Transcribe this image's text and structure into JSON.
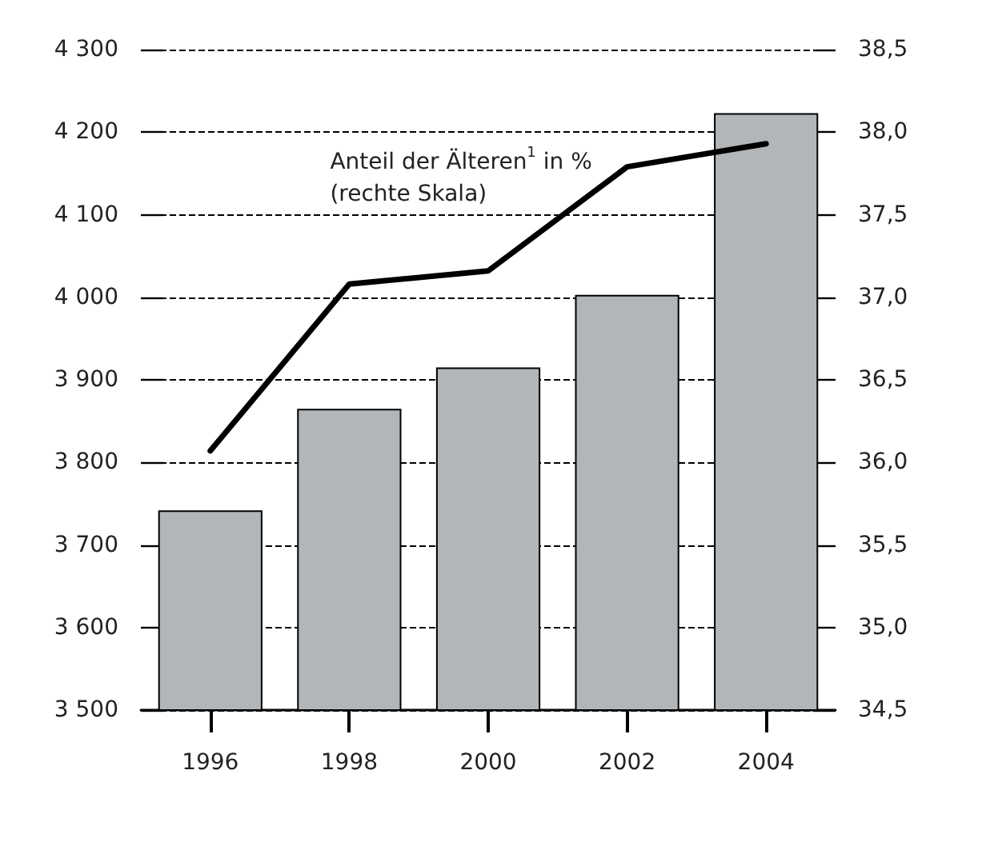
{
  "chart_data": {
    "type": "bar",
    "categories": [
      "1996",
      "1998",
      "2000",
      "2002",
      "2004"
    ],
    "series": [
      {
        "color": "#b3b6b9",
        "values": [
          3742,
          3865,
          3915,
          4003,
          4223
        ]
      },
      {
        "type": "line",
        "axis": "y2",
        "name": "Anteil der Älteren$^{1}$ in %\n(rechte Skala)",
        "color": "#000000",
        "values": [
          36.07,
          37.08,
          37.16,
          37.79,
          37.93
        ]
      }
    ],
    "ylim": [
      3500,
      4300
    ],
    "yticks": [
      {
        "value": 3500,
        "label": "3 500"
      },
      {
        "value": 3600,
        "label": "3 600"
      },
      {
        "value": 3700,
        "label": "3 700"
      },
      {
        "value": 3800,
        "label": "3 800"
      },
      {
        "value": 3900,
        "label": "3 900"
      },
      {
        "value": 4000,
        "label": "4 000"
      },
      {
        "value": 4100,
        "label": "4 100"
      },
      {
        "value": 4200,
        "label": "4 200"
      },
      {
        "value": 4300,
        "label": "4 300"
      }
    ],
    "y2lim": [
      34.5,
      38.5
    ],
    "y2ticks": [
      {
        "value": 34.5,
        "label": "34,5"
      },
      {
        "value": 35,
        "label": "35,0"
      },
      {
        "value": 35.5,
        "label": "35,5"
      },
      {
        "value": 36,
        "label": "36,0"
      },
      {
        "value": 36.5,
        "label": "36,5"
      },
      {
        "value": 37,
        "label": "37,0"
      },
      {
        "value": 37.5,
        "label": "37,5"
      },
      {
        "value": 38,
        "label": "38,0"
      },
      {
        "value": 38.5,
        "label": "38,5"
      }
    ],
    "grid": "y",
    "legend": false,
    "marker": "none",
    "line_style": "solid"
  }
}
